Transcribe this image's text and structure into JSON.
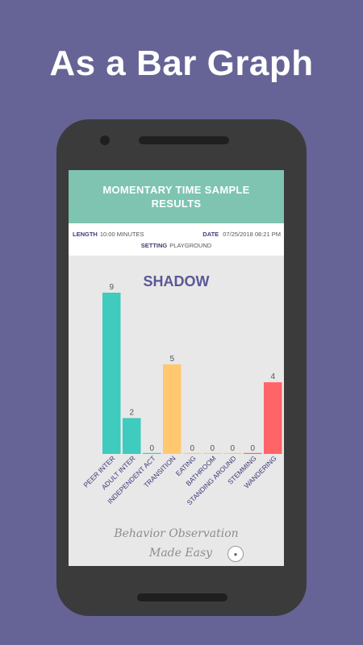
{
  "headline": "As a Bar Graph",
  "screen": {
    "title": "MOMENTARY TIME SAMPLE RESULTS",
    "length_label": "LENGTH",
    "length_value": "10:00 MINUTES",
    "date_label": "DATE",
    "date_value": "07/25/2018 08:21 PM",
    "setting_label": "SETTING",
    "setting_value": "PLAYGROUND",
    "footer_line1": "Behavior Observation",
    "footer_line2": "Made Easy",
    "logo_icon": "app-logo-badge"
  },
  "colors": {
    "background": "#666396",
    "header": "#7ec4b1",
    "teal": "#3fcbbd",
    "yellow": "#ffc870",
    "red": "#ff6467",
    "title_text": "#5a5896",
    "label_text": "#3e3b7a"
  },
  "chart_data": {
    "type": "bar",
    "title": "SHADOW",
    "categories": [
      "PEER INTER",
      "ADULT INTER",
      "INDEPENDENT ACT",
      "TRANSITION",
      "EATING",
      "BATHROOM",
      "STANDING AROUND",
      "STEMMING",
      "WANDERING"
    ],
    "values": [
      9,
      2,
      0,
      5,
      0,
      0,
      0,
      0,
      4
    ],
    "colors": [
      "#3fcbbd",
      "#3fcbbd",
      "#3fcbbd",
      "#ffc870",
      "#ffc870",
      "#ffc870",
      "#ffc870",
      "#ff6467",
      "#ff6467"
    ],
    "ylim": [
      0,
      9
    ],
    "grid": false,
    "xlabel": "",
    "ylabel": ""
  }
}
